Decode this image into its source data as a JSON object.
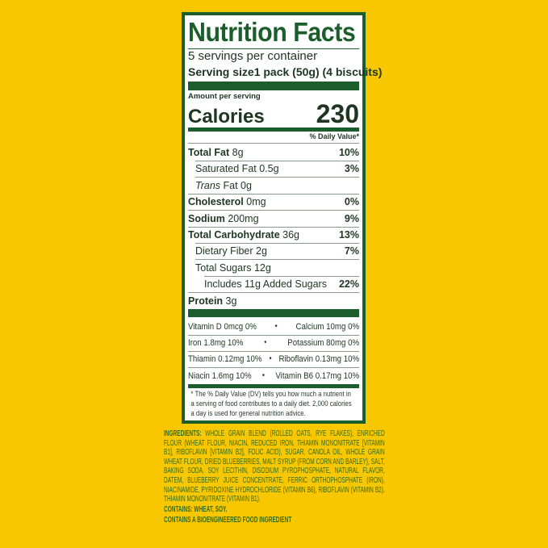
{
  "colors": {
    "background": "#f8c700",
    "label_green": "#1b5e2b",
    "ingredients_green": "#2f6b1f"
  },
  "label": {
    "title": "Nutrition Facts",
    "servings": "5 servings per container",
    "serving_size_label": "Serving size",
    "serving_size_value": "1 pack (50g) (4 biscuits)",
    "amount_per_serving": "Amount per serving",
    "calories_label": "Calories",
    "calories_value": "230",
    "daily_value_header": "% Daily Value*",
    "nutrients": [
      {
        "name": "Total Fat",
        "amount": "8g",
        "dv": "10%"
      },
      {
        "name": "Saturated Fat",
        "amount": "0.5g",
        "dv": "3%"
      },
      {
        "name": "Trans",
        "suffix": "Fat 0g",
        "dv": ""
      },
      {
        "name": "Cholesterol",
        "amount": "0mg",
        "dv": "0%"
      },
      {
        "name": "Sodium",
        "amount": "200mg",
        "dv": "9%"
      },
      {
        "name": "Total Carbohydrate",
        "amount": "36g",
        "dv": "13%"
      },
      {
        "name": "Dietary Fiber",
        "amount": "2g",
        "dv": "7%"
      },
      {
        "name": "Total Sugars",
        "amount": "12g",
        "dv": ""
      },
      {
        "name": "Includes 11g Added Sugars",
        "amount": "",
        "dv": "22%"
      },
      {
        "name": "Protein",
        "amount": "3g",
        "dv": ""
      }
    ],
    "vitamins": [
      {
        "left": "Vitamin D 0mcg 0%",
        "right": "Calcium 10mg 0%"
      },
      {
        "left": "Iron 1.8mg 10%",
        "right": "Potassium 80mg 0%"
      },
      {
        "left": "Thiamin 0.12mg 10%",
        "right": "Riboflavin 0.13mg 10%"
      },
      {
        "left": "Niacin 1.6mg 10%",
        "right": "Vitamin B6 0.17mg 10%"
      }
    ],
    "separator": "•",
    "footnote": "* The % Daily Value (DV) tells you how much a nutrient in a serving of food contributes to a daily diet. 2,000 calories a day is used for general nutrition advice."
  },
  "ingredients": {
    "heading": "INGREDIENTS:",
    "text": "WHOLE GRAIN BLEND (ROLLED OATS, RYE FLAKES), ENRICHED FLOUR (WHEAT FLOUR, NIACIN, REDUCED IRON, THIAMIN MONONITRATE [VITAMIN B1], RIBOFLAVIN [VITAMIN B2], FOLIC ACID), SUGAR, CANOLA OIL, WHOLE GRAIN WHEAT FLOUR, DRIED BLUEBERRIES, MALT SYRUP (FROM CORN AND BARLEY), SALT, BAKING SODA, SOY LECITHIN, DISODIUM PYROPHOSPHATE, NATURAL FLAVOR, DATEM, BLUEBERRY JUICE CONCENTRATE, FERRIC ORTHOPHOSPHATE (IRON), NIACINAMIDE, PYRIDOXINE HYDROCHLORIDE (VITAMIN B6), RIBOFLAVIN (VITAMIN B2), THIAMIN MONONITRATE (VITAMIN B1).",
    "contains": "CONTAINS: WHEAT, SOY.",
    "bioengineered": "CONTAINS A BIOENGINEERED FOOD INGREDIENT"
  }
}
